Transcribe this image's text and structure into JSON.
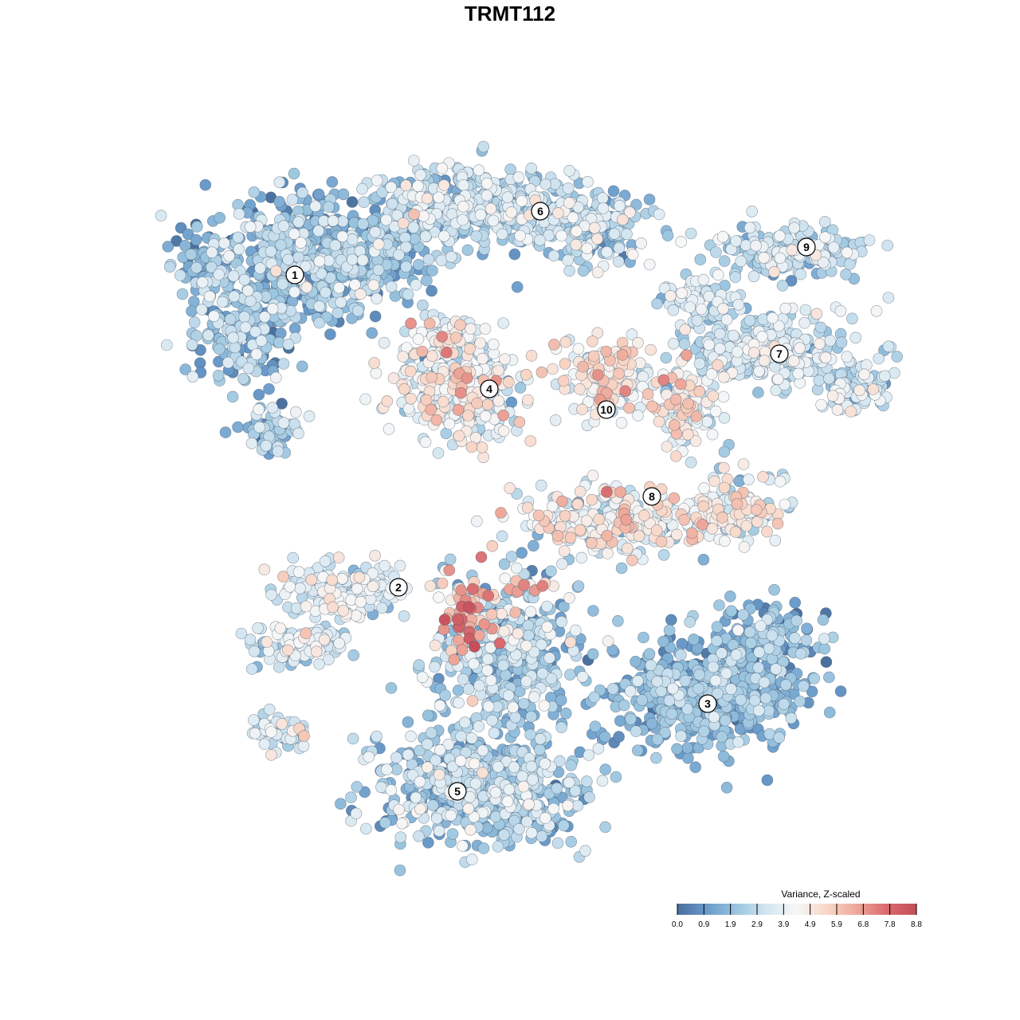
{
  "title": "TRMT112",
  "chart_data": {
    "type": "scatter",
    "title": "TRMT112",
    "xlabel": "",
    "ylabel": "",
    "grid": false,
    "color_scale": {
      "title": "Variance, Z-scaled",
      "ticks": [
        "0.0",
        "0.9",
        "1.9",
        "2.9",
        "3.9",
        "4.9",
        "5.9",
        "6.8",
        "7.8",
        "8.8"
      ],
      "min": 0.0,
      "max": 8.8,
      "colors": [
        "#4a6f9c",
        "#6a9bcb",
        "#9cc6e0",
        "#d4e6f1",
        "#f7f7f7",
        "#f8d7c7",
        "#eea89a",
        "#d96a6e",
        "#c44e5a"
      ],
      "placement": "bottom-right"
    },
    "clusters": [
      {
        "label": "1",
        "mean_value": 2.0
      },
      {
        "label": "2",
        "mean_value": 3.4
      },
      {
        "label": "3",
        "mean_value": 1.8
      },
      {
        "label": "4",
        "mean_value": 3.9
      },
      {
        "label": "5",
        "mean_value": 2.4
      },
      {
        "label": "6",
        "mean_value": 2.8
      },
      {
        "label": "7",
        "mean_value": 3.2
      },
      {
        "label": "8",
        "mean_value": 4.2
      },
      {
        "label": "9",
        "mean_value": 2.9
      },
      {
        "label": "10",
        "mean_value": 4.6
      }
    ]
  }
}
